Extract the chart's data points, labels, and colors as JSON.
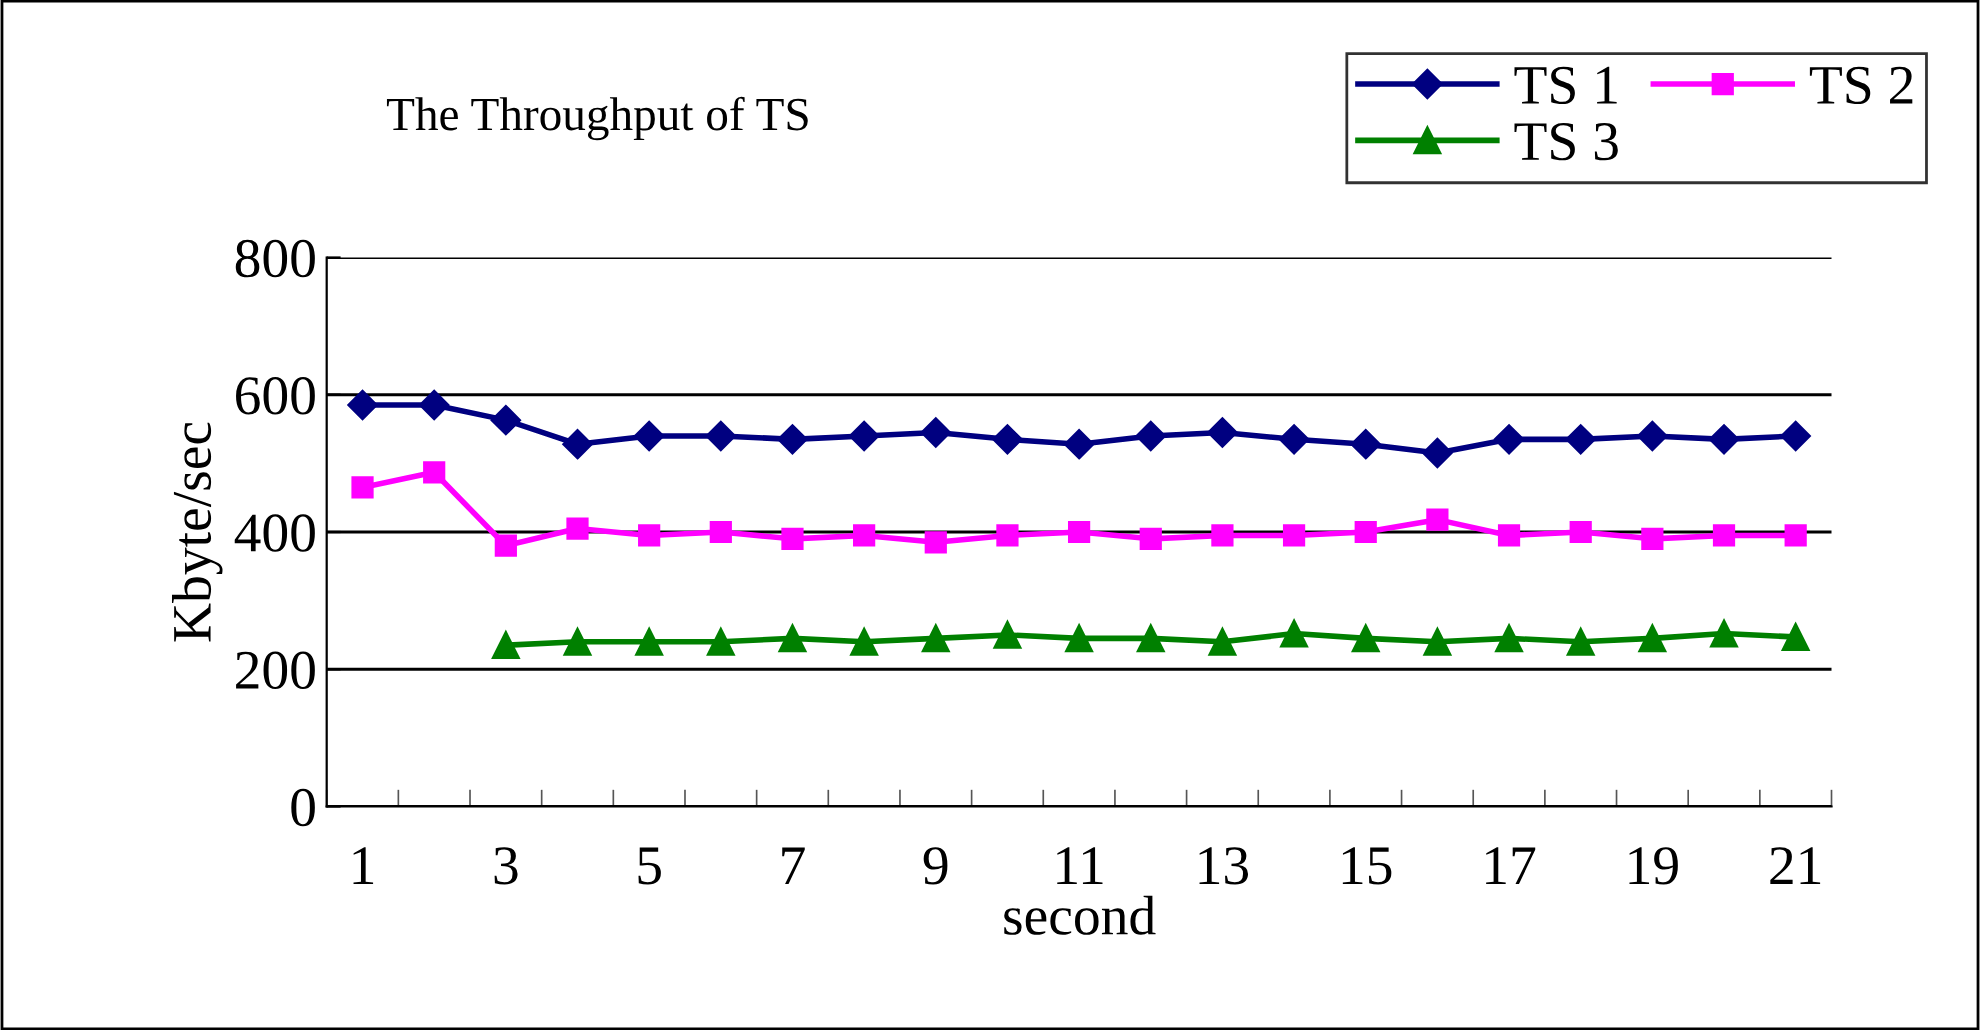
{
  "chart_data": {
    "type": "line",
    "title": "The Throughput of TS",
    "xlabel": "second",
    "ylabel": "Kbyte/sec",
    "categories": [
      "1",
      null,
      "3",
      null,
      "5",
      null,
      "7",
      null,
      "9",
      null,
      "11",
      null,
      "13",
      null,
      "15",
      null,
      "17",
      null,
      "19",
      null,
      "21"
    ],
    "series": [
      {
        "name": "TS 1",
        "color": "#000080",
        "marker": "diamond",
        "values": [
          585,
          585,
          563,
          528,
          540,
          540,
          535,
          540,
          545,
          535,
          528,
          540,
          545,
          535,
          528,
          515,
          535,
          535,
          540,
          535,
          540
        ]
      },
      {
        "name": "TS 2",
        "color": "#ff00ff",
        "marker": "square",
        "values": [
          465,
          487,
          380,
          405,
          395,
          400,
          390,
          395,
          385,
          395,
          400,
          390,
          395,
          395,
          400,
          418,
          395,
          400,
          390,
          395,
          395
        ]
      },
      {
        "name": "TS 3",
        "color": "#008000",
        "marker": "triangle",
        "values": [
          null,
          null,
          235,
          240,
          240,
          240,
          245,
          240,
          245,
          250,
          245,
          245,
          240,
          252,
          245,
          240,
          245,
          240,
          245,
          252,
          247
        ]
      }
    ],
    "ylim": [
      0,
      800
    ],
    "yticks": [
      0,
      200,
      400,
      600,
      800
    ],
    "grid": "y",
    "legend": "top right",
    "line_style": "solid"
  }
}
